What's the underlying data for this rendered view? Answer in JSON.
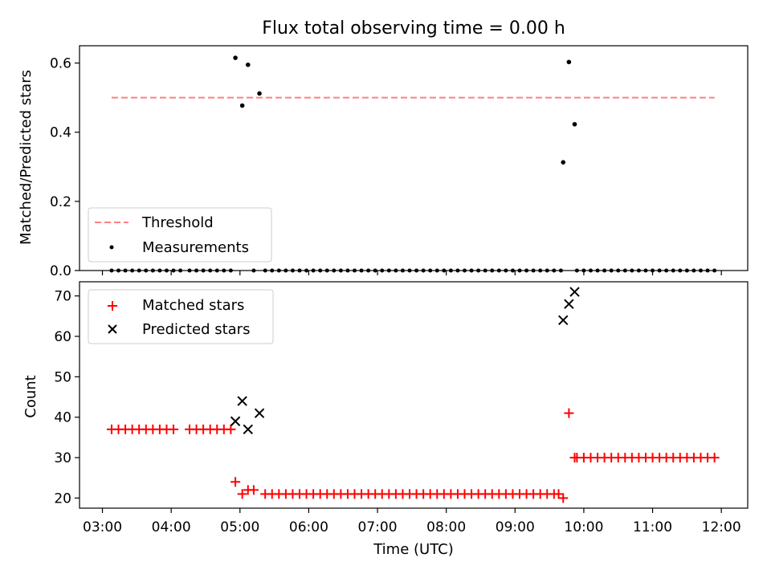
{
  "chart_data": [
    {
      "type": "scatter",
      "title": "Flux total observing time = 0.00 h",
      "xlabel": "",
      "ylabel": "Matched/Predicted stars",
      "ylim": [
        0.0,
        0.65
      ],
      "yticks": [
        "0.0",
        "0.2",
        "0.4",
        "0.6"
      ],
      "grid": false,
      "legend_position": "lower-left",
      "threshold": {
        "name": "Threshold",
        "value": 0.5,
        "x_start": "03:08",
        "x_end": "11:54",
        "color": "#ff7f7f"
      },
      "series": [
        {
          "name": "Measurements",
          "color": "#000000",
          "zero_values_times": [
            "03:08",
            "03:14",
            "03:20",
            "03:26",
            "03:32",
            "03:38",
            "03:44",
            "03:50",
            "03:56",
            "04:02",
            "04:08",
            "04:16",
            "04:22",
            "04:28",
            "04:34",
            "04:40",
            "04:46",
            "04:52",
            "05:12",
            "05:22",
            "05:28",
            "05:34",
            "05:40",
            "05:46",
            "05:52",
            "05:58",
            "06:04",
            "06:10",
            "06:16",
            "06:22",
            "06:28",
            "06:34",
            "06:40",
            "06:46",
            "06:52",
            "06:58",
            "07:04",
            "07:10",
            "07:16",
            "07:22",
            "07:28",
            "07:34",
            "07:40",
            "07:46",
            "07:52",
            "07:58",
            "08:04",
            "08:10",
            "08:16",
            "08:22",
            "08:28",
            "08:34",
            "08:40",
            "08:46",
            "08:52",
            "08:58",
            "09:04",
            "09:10",
            "09:16",
            "09:22",
            "09:28",
            "09:34",
            "09:40",
            "09:54",
            "10:00",
            "10:06",
            "10:12",
            "10:18",
            "10:24",
            "10:30",
            "10:36",
            "10:42",
            "10:48",
            "10:54",
            "11:00",
            "11:06",
            "11:12",
            "11:18",
            "11:24",
            "11:30",
            "11:36",
            "11:42",
            "11:48",
            "11:54"
          ],
          "points": [
            {
              "x": "04:56",
              "y": 0.615
            },
            {
              "x": "05:02",
              "y": 0.477
            },
            {
              "x": "05:07",
              "y": 0.595
            },
            {
              "x": "05:17",
              "y": 0.512
            },
            {
              "x": "09:42",
              "y": 0.313
            },
            {
              "x": "09:47",
              "y": 0.603
            },
            {
              "x": "09:52",
              "y": 0.423
            }
          ]
        }
      ]
    },
    {
      "type": "scatter",
      "title": "",
      "xlabel": "Time (UTC)",
      "ylabel": "Count",
      "ylim": [
        17.5,
        73.5
      ],
      "yticks": [
        "20",
        "30",
        "40",
        "50",
        "60",
        "70"
      ],
      "xlim": [
        "02:40",
        "12:23"
      ],
      "xticks": [
        "03:00",
        "04:00",
        "05:00",
        "06:00",
        "07:00",
        "08:00",
        "09:00",
        "10:00",
        "11:00",
        "12:00"
      ],
      "grid": false,
      "legend_position": "upper-left",
      "series": [
        {
          "name": "Matched stars",
          "marker": "+",
          "color": "#ff0000",
          "runs": [
            {
              "start": "03:08",
              "end": "04:02",
              "step_min": 6,
              "y": 37
            },
            {
              "start": "04:16",
              "end": "04:52",
              "step_min": 6,
              "y": 37
            },
            {
              "start": "05:22",
              "end": "09:34",
              "step_min": 6,
              "y": 21
            },
            {
              "start": "09:54",
              "end": "11:54",
              "step_min": 6,
              "y": 30
            }
          ],
          "points": [
            {
              "x": "04:56",
              "y": 24
            },
            {
              "x": "05:02",
              "y": 21
            },
            {
              "x": "05:07",
              "y": 22
            },
            {
              "x": "05:12",
              "y": 22
            },
            {
              "x": "09:38",
              "y": 21
            },
            {
              "x": "09:42",
              "y": 20
            },
            {
              "x": "09:47",
              "y": 41
            },
            {
              "x": "09:52",
              "y": 30
            }
          ]
        },
        {
          "name": "Predicted stars",
          "marker": "x",
          "color": "#000000",
          "points": [
            {
              "x": "04:56",
              "y": 39
            },
            {
              "x": "05:02",
              "y": 44
            },
            {
              "x": "05:07",
              "y": 37
            },
            {
              "x": "05:17",
              "y": 41
            },
            {
              "x": "09:42",
              "y": 64
            },
            {
              "x": "09:47",
              "y": 68
            },
            {
              "x": "09:52",
              "y": 71
            }
          ]
        }
      ]
    }
  ]
}
